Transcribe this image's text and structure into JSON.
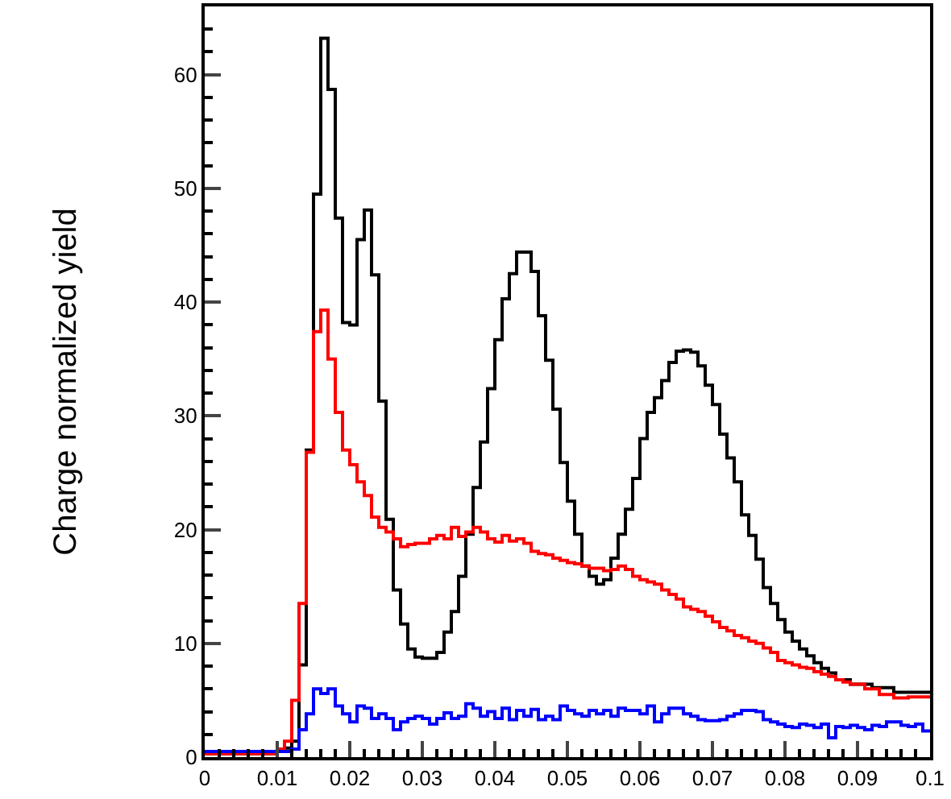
{
  "chart_data": {
    "type": "histogram",
    "ylabel": "Charge normalized yield",
    "bins": [
      0,
      0.001,
      0.002,
      0.003,
      0.004,
      0.005,
      0.006,
      0.007,
      0.008,
      0.009,
      0.01,
      0.011,
      0.012,
      0.013,
      0.014,
      0.015,
      0.016,
      0.017,
      0.018,
      0.019,
      0.02,
      0.021,
      0.022,
      0.023,
      0.024,
      0.025,
      0.026,
      0.027,
      0.028,
      0.029,
      0.03,
      0.031,
      0.032,
      0.033,
      0.034,
      0.035,
      0.036,
      0.037,
      0.038,
      0.039,
      0.04,
      0.041,
      0.042,
      0.043,
      0.044,
      0.045,
      0.046,
      0.047,
      0.048,
      0.049,
      0.05,
      0.051,
      0.052,
      0.053,
      0.054,
      0.055,
      0.056,
      0.057,
      0.058,
      0.059,
      0.06,
      0.061,
      0.062,
      0.063,
      0.064,
      0.065,
      0.066,
      0.067,
      0.068,
      0.069,
      0.07,
      0.071,
      0.072,
      0.073,
      0.074,
      0.075,
      0.076,
      0.077,
      0.078,
      0.079,
      0.08,
      0.081,
      0.082,
      0.083,
      0.084,
      0.085,
      0.086,
      0.087,
      0.088,
      0.089,
      0.09,
      0.091,
      0.092,
      0.093,
      0.094,
      0.095,
      0.096,
      0.097,
      0.098,
      0.099,
      0.1
    ],
    "series": [
      {
        "color": "#000000",
        "values": [
          0.3,
          0.3,
          0.3,
          0.3,
          0.3,
          0.3,
          0.3,
          0.3,
          0.3,
          0.3,
          0.5,
          0.8,
          1.4,
          8.1,
          27,
          49.5,
          63.2,
          58.7,
          47.4,
          38.2,
          38,
          45.5,
          48.1,
          42.4,
          31.3,
          20.9,
          14.7,
          11.7,
          9.5,
          8.8,
          8.7,
          8.7,
          9.2,
          11,
          12.8,
          15.9,
          19.6,
          23.7,
          27.7,
          32.4,
          36.7,
          40.3,
          42.5,
          44.4,
          44.4,
          42.7,
          38.8,
          34.9,
          30.6,
          25.9,
          22.5,
          19.6,
          16.8,
          15.9,
          15.2,
          15.6,
          17.5,
          19.6,
          21.8,
          24.5,
          28,
          30.3,
          31.6,
          33.1,
          34.7,
          35.7,
          35.8,
          35.6,
          34.4,
          32.7,
          31,
          28.4,
          26.3,
          24.2,
          21.3,
          19.5,
          17.4,
          14.9,
          13.5,
          12.1,
          11,
          10.2,
          9.5,
          8.9,
          8.3,
          7.8,
          7.4,
          6.8,
          6.8,
          6.4,
          6.4,
          6.4,
          6.1,
          6.1,
          6.1,
          5.7,
          5.7,
          5.7,
          5.7,
          5.7
        ]
      },
      {
        "color": "#ff0000",
        "values": [
          0.3,
          0.3,
          0.3,
          0.3,
          0.3,
          0.3,
          0.3,
          0.3,
          0.3,
          0.3,
          0.7,
          1.4,
          5,
          13.5,
          26.8,
          37.4,
          39.3,
          35,
          30.3,
          27,
          25.7,
          24.2,
          23,
          21.1,
          20.2,
          19.8,
          19.2,
          18.5,
          18.7,
          18.8,
          18.8,
          19.2,
          19.5,
          19.2,
          20.2,
          19.4,
          19.8,
          20.2,
          19.8,
          19.2,
          18.9,
          19.5,
          19,
          19.2,
          18.8,
          18.1,
          17.9,
          17.8,
          17.5,
          17.3,
          17.1,
          17,
          16.8,
          16.6,
          16.6,
          16.4,
          16.5,
          16.8,
          16.5,
          15.9,
          15.6,
          15.4,
          15.2,
          14.7,
          14.3,
          13.9,
          13.2,
          13,
          12.8,
          12.4,
          11.9,
          11.4,
          11.1,
          10.7,
          10.5,
          10.2,
          10,
          9.6,
          9.2,
          8.5,
          8.3,
          8.1,
          7.9,
          7.8,
          7.5,
          7.3,
          7.1,
          6.8,
          6.6,
          6.4,
          6.4,
          6,
          6,
          5.5,
          5.5,
          5.2,
          5.2,
          5.3,
          5.3,
          5.3
        ]
      },
      {
        "color": "#0000ff",
        "values": [
          0.5,
          0.5,
          0.5,
          0.5,
          0.5,
          0.5,
          0.5,
          0.5,
          0.5,
          0.5,
          0.5,
          0.5,
          0.7,
          2.4,
          3.8,
          6,
          5.6,
          6,
          4.5,
          3.8,
          3.1,
          4.5,
          4.3,
          3.4,
          3.8,
          3.4,
          2.4,
          3.1,
          3.4,
          3.6,
          3.4,
          2.9,
          3.4,
          3.9,
          3.4,
          3.6,
          4.7,
          4.3,
          3.6,
          4,
          3.4,
          4.3,
          3.3,
          4.1,
          3.6,
          4.2,
          3.3,
          3.6,
          3.3,
          4.5,
          4.1,
          3.8,
          3.6,
          4.1,
          3.8,
          4.1,
          3.6,
          4.3,
          4.1,
          4.1,
          3.8,
          4.5,
          3.1,
          3.8,
          4.3,
          4.3,
          3.8,
          3.6,
          3.3,
          3.2,
          3.2,
          3.3,
          3.6,
          3.8,
          4.1,
          4.1,
          4,
          3.3,
          3.1,
          2.9,
          2.7,
          2.6,
          2.9,
          2.8,
          2.6,
          2.9,
          1.7,
          2.7,
          2.6,
          2.8,
          2.6,
          2.4,
          2.8,
          2.7,
          3.1,
          3.1,
          2.8,
          2.7,
          2.9,
          2.3
        ]
      }
    ],
    "xlim": [
      0,
      0.1
    ],
    "xticks": [
      0,
      0.01,
      0.02,
      0.03,
      0.04,
      0.05,
      0.06,
      0.07,
      0.08,
      0.09,
      0.1
    ],
    "ylim": [
      0,
      66
    ],
    "yticks": [
      0,
      10,
      20,
      30,
      40,
      50,
      60
    ]
  }
}
